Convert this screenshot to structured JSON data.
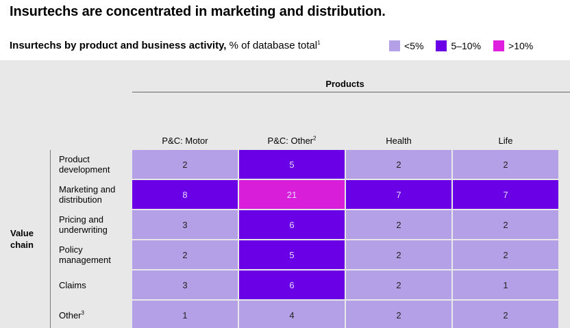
{
  "title": "Insurtechs are concentrated in marketing and distribution.",
  "subtitle": {
    "bold": "Insurtechs by product and business activity,",
    "rest": " % of database total",
    "footnote": "1"
  },
  "legend": [
    {
      "label": "<5%",
      "color": "#b3a0e6"
    },
    {
      "label": "5–10%",
      "color": "#6a00e6"
    },
    {
      "label": ">10%",
      "color": "#e01ee0"
    }
  ],
  "colors": {
    "low": "#b3a0e6",
    "mid": "#6a00e6",
    "high": "#d81ed8",
    "panel": "#e8e8e8"
  },
  "products_title": "Products",
  "value_chain_label": [
    "Value",
    "chain"
  ],
  "chart_data": {
    "type": "heatmap",
    "title": "Insurtechs by product and business activity, % of database total",
    "columns": [
      {
        "label": "P&C: Motor",
        "footnote": ""
      },
      {
        "label": "P&C: Other",
        "footnote": "2"
      },
      {
        "label": "Health",
        "footnote": ""
      },
      {
        "label": "Life",
        "footnote": ""
      }
    ],
    "rows": [
      {
        "label": "Product development",
        "footnote": "",
        "values": [
          2,
          5,
          2,
          2
        ]
      },
      {
        "label": "Marketing and distribution",
        "footnote": "",
        "values": [
          8,
          21,
          7,
          7
        ]
      },
      {
        "label": "Pricing and underwriting",
        "footnote": "",
        "values": [
          3,
          6,
          2,
          2
        ]
      },
      {
        "label": "Policy management",
        "footnote": "",
        "values": [
          2,
          5,
          2,
          2
        ]
      },
      {
        "label": "Claims",
        "footnote": "",
        "values": [
          3,
          6,
          2,
          1
        ]
      },
      {
        "label": "Other",
        "footnote": "3",
        "values": [
          1,
          4,
          2,
          2
        ]
      }
    ],
    "bins": [
      "<5%",
      "5–10%",
      ">10%"
    ]
  }
}
